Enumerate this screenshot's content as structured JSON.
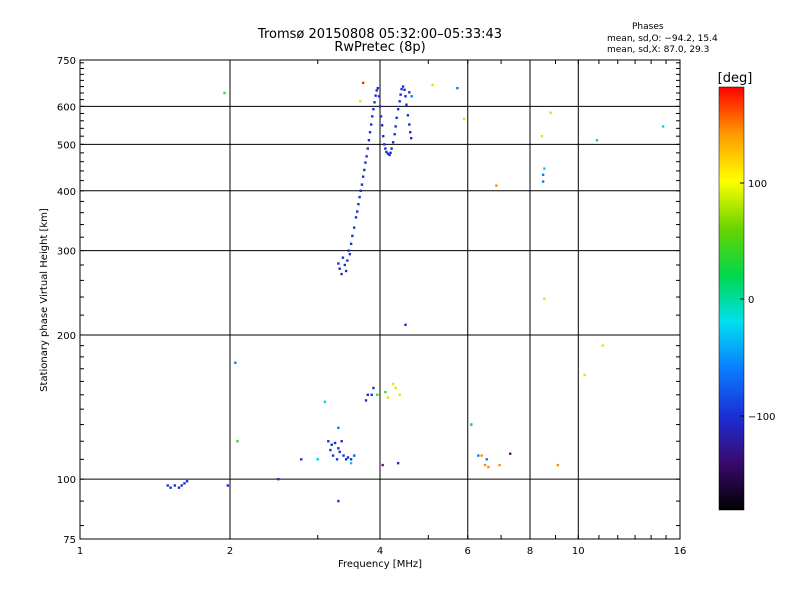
{
  "header": {
    "title_line1": "Tromsø 20150808 05:32:00–05:33:43",
    "title_line2": "RwPretec (8p)"
  },
  "phases_box": {
    "title": "Phases",
    "line1": "mean, sd,O: −94.2, 15.4",
    "line2": "mean, sd,X:  87.0, 29.3"
  },
  "colorbar": {
    "label": "[deg]",
    "ticks": [
      "100",
      "0",
      "−100"
    ],
    "stops": [
      "#000000",
      "#3a0a6e",
      "#1a2fd6",
      "#0a7cff",
      "#00e0f0",
      "#00d84a",
      "#6ad400",
      "#ffff00",
      "#ff9a00",
      "#ff0000"
    ]
  },
  "chart_data": {
    "type": "scatter",
    "title": "Tromsø 20150808 05:32:00–05:33:43",
    "subtitle": "RwPretec (8p)",
    "xlabel": "Frequency [MHz]",
    "ylabel": "Stationary phase Virtual Height [km]",
    "xscale": "log",
    "yscale": "log",
    "xlim": [
      1,
      16
    ],
    "ylim": [
      75,
      750
    ],
    "xticks": [
      1,
      2,
      4,
      6,
      8,
      10,
      16
    ],
    "yticks": [
      75,
      100,
      200,
      300,
      400,
      500,
      600,
      750
    ],
    "grid": true,
    "colorbar_range_deg": [
      -180,
      180
    ],
    "series": [
      {
        "color": "#1a2fd6",
        "points": [
          [
            1.5,
            97
          ],
          [
            1.52,
            96
          ],
          [
            1.55,
            97
          ],
          [
            1.58,
            96
          ],
          [
            1.6,
            97
          ],
          [
            1.62,
            98
          ],
          [
            1.64,
            99
          ],
          [
            1.98,
            97
          ],
          [
            2.5,
            100
          ],
          [
            2.78,
            110
          ],
          [
            3.15,
            120
          ],
          [
            3.18,
            115
          ],
          [
            3.2,
            118
          ],
          [
            3.22,
            112
          ],
          [
            3.25,
            119
          ],
          [
            3.28,
            110
          ],
          [
            3.3,
            116
          ],
          [
            3.32,
            114
          ],
          [
            3.35,
            120
          ],
          [
            3.38,
            112
          ],
          [
            3.42,
            110
          ],
          [
            3.45,
            111
          ],
          [
            3.5,
            110
          ],
          [
            3.55,
            112
          ],
          [
            3.75,
            146
          ],
          [
            3.78,
            150
          ],
          [
            3.85,
            150
          ],
          [
            3.88,
            155
          ],
          [
            4.35,
            108
          ],
          [
            3.3,
            90
          ],
          [
            4.5,
            210
          ],
          [
            4.58,
            642
          ],
          [
            3.3,
            282
          ],
          [
            3.32,
            275
          ],
          [
            3.35,
            268
          ],
          [
            3.37,
            290
          ],
          [
            3.4,
            280
          ],
          [
            3.42,
            272
          ],
          [
            3.44,
            286
          ],
          [
            3.46,
            300
          ],
          [
            3.48,
            295
          ],
          [
            3.5,
            310
          ],
          [
            3.52,
            322
          ],
          [
            3.55,
            335
          ],
          [
            3.58,
            352
          ],
          [
            3.6,
            362
          ],
          [
            3.62,
            375
          ],
          [
            3.64,
            388
          ],
          [
            3.66,
            400
          ],
          [
            3.68,
            412
          ],
          [
            3.7,
            428
          ],
          [
            3.72,
            442
          ],
          [
            3.74,
            458
          ],
          [
            3.76,
            472
          ],
          [
            3.78,
            490
          ],
          [
            3.8,
            510
          ],
          [
            3.82,
            530
          ],
          [
            3.84,
            550
          ],
          [
            3.86,
            572
          ],
          [
            3.88,
            592
          ],
          [
            3.9,
            612
          ],
          [
            3.92,
            632
          ],
          [
            3.94,
            648
          ],
          [
            3.96,
            655
          ],
          [
            3.98,
            630
          ],
          [
            4.0,
            600
          ],
          [
            4.02,
            572
          ],
          [
            4.04,
            548
          ],
          [
            4.06,
            520
          ],
          [
            4.08,
            500
          ],
          [
            4.1,
            490
          ],
          [
            4.12,
            482
          ],
          [
            4.15,
            478
          ],
          [
            4.18,
            475
          ],
          [
            4.2,
            480
          ],
          [
            4.22,
            490
          ],
          [
            4.25,
            505
          ],
          [
            4.28,
            525
          ],
          [
            4.3,
            545
          ],
          [
            4.32,
            568
          ],
          [
            4.35,
            592
          ],
          [
            4.38,
            615
          ],
          [
            4.4,
            635
          ],
          [
            4.42,
            652
          ],
          [
            4.45,
            660
          ],
          [
            4.48,
            650
          ],
          [
            4.5,
            630
          ],
          [
            4.52,
            605
          ],
          [
            4.55,
            575
          ],
          [
            4.58,
            550
          ],
          [
            4.6,
            530
          ],
          [
            4.62,
            515
          ]
        ]
      },
      {
        "color": "#0a7cff",
        "points": [
          [
            4.63,
            630
          ],
          [
            5.72,
            655
          ],
          [
            8.5,
            418
          ],
          [
            8.5,
            432
          ],
          [
            3.3,
            128
          ],
          [
            3.55,
            112
          ],
          [
            6.3,
            112
          ],
          [
            6.55,
            110
          ],
          [
            6.1,
            130
          ],
          [
            2.05,
            175
          ]
        ]
      },
      {
        "color": "#00d0e0",
        "points": [
          [
            8.55,
            445
          ],
          [
            10.9,
            510
          ],
          [
            14.8,
            545
          ],
          [
            3.5,
            108
          ],
          [
            3.0,
            110
          ],
          [
            3.1,
            145
          ]
        ]
      },
      {
        "color": "#40d040",
        "points": [
          [
            2.07,
            120
          ],
          [
            6.1,
            130
          ],
          [
            3.95,
            150
          ],
          [
            4.1,
            152
          ],
          [
            1.95,
            640
          ]
        ]
      },
      {
        "color": "#e8e000",
        "points": [
          [
            4.25,
            158
          ],
          [
            4.3,
            155
          ],
          [
            4.38,
            150
          ],
          [
            8.45,
            520
          ],
          [
            8.8,
            582
          ],
          [
            5.9,
            565
          ],
          [
            8.55,
            238
          ],
          [
            10.3,
            165
          ],
          [
            11.2,
            190
          ],
          [
            3.65,
            615
          ],
          [
            5.1,
            665
          ],
          [
            4.15,
            148
          ]
        ]
      },
      {
        "color": "#ff8a00",
        "points": [
          [
            6.85,
            410
          ],
          [
            6.4,
            112
          ],
          [
            6.5,
            107
          ],
          [
            6.6,
            106
          ],
          [
            6.95,
            107
          ],
          [
            9.1,
            107
          ]
        ]
      },
      {
        "color": "#ff2a00",
        "points": [
          [
            3.7,
            672
          ]
        ]
      },
      {
        "color": "#6a0a7a",
        "points": [
          [
            4.05,
            107
          ],
          [
            7.3,
            113
          ]
        ]
      }
    ]
  }
}
